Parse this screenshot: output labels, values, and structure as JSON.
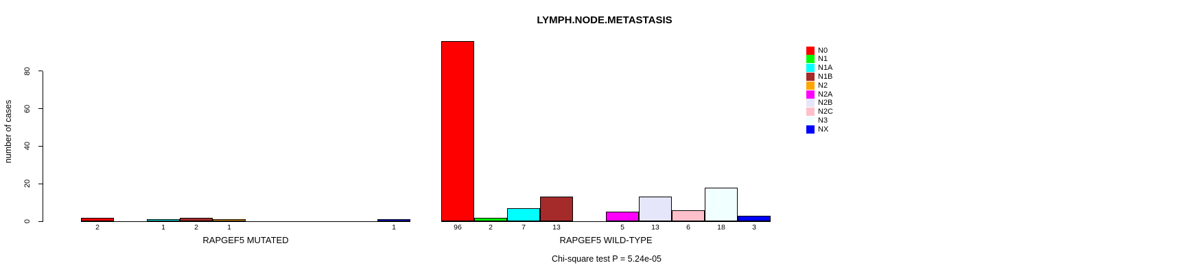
{
  "title": "LYMPH.NODE.METASTASIS",
  "footer": "Chi-square test P = 5.24e-05",
  "chart_data": {
    "type": "bar",
    "title": "LYMPH.NODE.METASTASIS",
    "xlabel": "",
    "ylabel": "number of cases",
    "yticks": [
      0,
      20,
      40,
      60,
      80
    ],
    "ylim": [
      0,
      96
    ],
    "grid": false,
    "legend_position": "right",
    "categories": [
      "N0",
      "N1",
      "N1A",
      "N1B",
      "N2",
      "N2A",
      "N2B",
      "N2C",
      "N3",
      "NX"
    ],
    "category_colors": [
      "#FF0000",
      "#00FF00",
      "#00FFFF",
      "#A52A2A",
      "#FFA500",
      "#FF00FF",
      "#E6E6FA",
      "#FFC0CB",
      "#F0FFFF",
      "#0000FF"
    ],
    "groups": [
      {
        "label": "RAPGEF5 MUTATED",
        "values": [
          2,
          0,
          1,
          2,
          1,
          0,
          0,
          0,
          0,
          1
        ]
      },
      {
        "label": "RAPGEF5 WILD-TYPE",
        "values": [
          96,
          2,
          7,
          13,
          0,
          5,
          13,
          6,
          18,
          3
        ]
      }
    ],
    "annotation": "Chi-square test P = 5.24e-05"
  }
}
